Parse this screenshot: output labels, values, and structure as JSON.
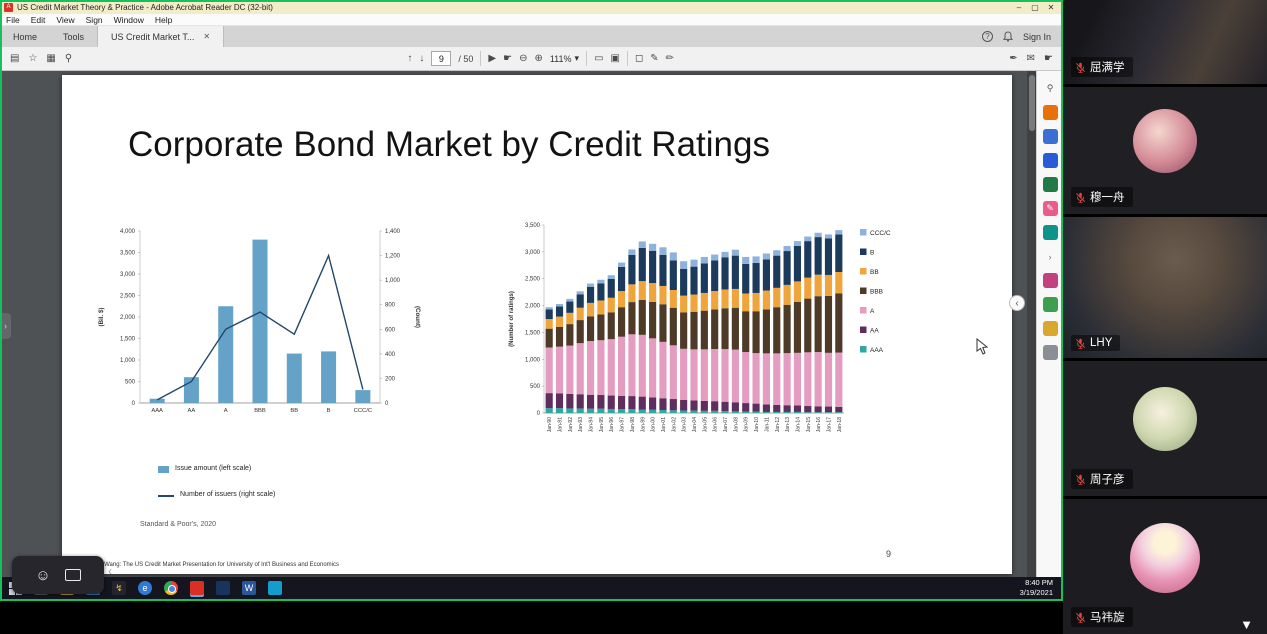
{
  "acrobat": {
    "window_title": "US Credit Market Theory & Practice - Adobe Acrobat Reader DC (32-bit)",
    "window_buttons": {
      "minimize": "–",
      "maximize": "▢",
      "close": "✕"
    },
    "menu": [
      "File",
      "Edit",
      "View",
      "Sign",
      "Window",
      "Help"
    ],
    "tabs": [
      {
        "label": "Home"
      },
      {
        "label": "Tools"
      },
      {
        "label": "US Credit Market T..."
      }
    ],
    "tab_close": "✕",
    "help_icon": "?",
    "sign_in_label": "Sign In",
    "toolbar": {
      "page_current": "9",
      "page_total": "/ 50",
      "zoom": "111%"
    }
  },
  "slide": {
    "title": "Corporate Bond Market by Credit Ratings",
    "source": "Standard & Poor's, 2020",
    "footer": "© Wang: The US Credit Market Presentation for University of Int'l Business and Economics",
    "page_number": "9"
  },
  "chart_data": [
    {
      "type": "bar",
      "subtype": "combo-bar-line",
      "categories": [
        "AAA",
        "AA",
        "A",
        "BBB",
        "BB",
        "B",
        "CCC/C"
      ],
      "series": [
        {
          "name": "Issue amount (left scale)",
          "type": "bar",
          "axis": "left",
          "color": "#64a2c7",
          "values": [
            100,
            600,
            2250,
            3800,
            1150,
            1200,
            300
          ]
        },
        {
          "name": "Number of issuers (right scale)",
          "type": "line",
          "axis": "right",
          "color": "#24476b",
          "values": [
            25,
            175,
            600,
            740,
            560,
            1200,
            110
          ]
        }
      ],
      "ylabel_left": "(Bil. $)",
      "ylabel_right": "(Count)",
      "ylim_left": [
        0,
        4000
      ],
      "ytick_left": 500,
      "ylim_right": [
        0,
        1400
      ],
      "ytick_right": 200,
      "legend_position": "bottom"
    },
    {
      "type": "bar",
      "subtype": "stacked",
      "ylabel": "(Number of ratings)",
      "ylim": [
        0,
        3500
      ],
      "ytick": 500,
      "legend_position": "right",
      "legend_order_top_to_bottom": [
        "CCC/C",
        "B",
        "BB",
        "BBB",
        "A",
        "AA",
        "AAA"
      ],
      "categories": [
        "Jan-90",
        "Jan-91",
        "Jan-92",
        "Jan-93",
        "Jan-94",
        "Jan-95",
        "Jan-96",
        "Jan-97",
        "Jan-98",
        "Jan-99",
        "Jan-00",
        "Jan-01",
        "Jan-02",
        "Jan-03",
        "Jan-04",
        "Jan-05",
        "Jan-06",
        "Jan-07",
        "Jan-08",
        "Jan-09",
        "Jan-10",
        "Jan-11",
        "Jan-12",
        "Jan-13",
        "Jan-14",
        "Jan-15",
        "Jan-16",
        "Jan-17",
        "Jan-18"
      ],
      "series": [
        {
          "name": "AAA",
          "color": "#2ea8a4",
          "values": [
            90,
            90,
            85,
            85,
            80,
            80,
            75,
            70,
            70,
            65,
            60,
            55,
            50,
            45,
            45,
            40,
            40,
            35,
            30,
            25,
            25,
            20,
            20,
            20,
            20,
            15,
            15,
            15,
            15
          ]
        },
        {
          "name": "AA",
          "color": "#5f2e5f",
          "values": [
            280,
            275,
            270,
            265,
            260,
            255,
            250,
            250,
            245,
            240,
            230,
            220,
            210,
            200,
            190,
            185,
            180,
            175,
            170,
            160,
            150,
            140,
            130,
            125,
            120,
            115,
            110,
            105,
            100
          ]
        },
        {
          "name": "A",
          "color": "#e49cc0",
          "values": [
            850,
            870,
            900,
            950,
            1000,
            1020,
            1050,
            1100,
            1150,
            1150,
            1100,
            1050,
            1000,
            950,
            950,
            960,
            970,
            980,
            980,
            950,
            940,
            950,
            960,
            970,
            980,
            1000,
            1010,
            1000,
            1010
          ]
        },
        {
          "name": "BBB",
          "color": "#4e3b27",
          "values": [
            350,
            370,
            400,
            430,
            460,
            480,
            500,
            550,
            600,
            650,
            680,
            700,
            700,
            680,
            700,
            720,
            740,
            760,
            780,
            760,
            780,
            820,
            860,
            900,
            950,
            1000,
            1040,
            1060,
            1100
          ]
        },
        {
          "name": "BB",
          "color": "#f0a43c",
          "values": [
            180,
            190,
            210,
            230,
            250,
            260,
            270,
            300,
            330,
            350,
            350,
            340,
            330,
            310,
            320,
            330,
            340,
            350,
            350,
            330,
            340,
            350,
            360,
            370,
            380,
            390,
            400,
            390,
            400
          ]
        },
        {
          "name": "B",
          "color": "#1b3a5c",
          "values": [
            180,
            190,
            210,
            250,
            300,
            320,
            350,
            450,
            550,
            620,
            600,
            580,
            550,
            500,
            520,
            550,
            570,
            600,
            620,
            550,
            560,
            580,
            600,
            630,
            660,
            680,
            700,
            680,
            700
          ]
        },
        {
          "name": "CCC/C",
          "color": "#8fb2dc",
          "values": [
            40,
            45,
            50,
            55,
            60,
            65,
            70,
            80,
            100,
            120,
            130,
            140,
            150,
            140,
            130,
            120,
            110,
            100,
            110,
            130,
            120,
            110,
            100,
            95,
            90,
            85,
            80,
            75,
            80
          ]
        }
      ]
    }
  ],
  "taskbar": {
    "time": "8:40 PM",
    "date": "3/19/2021"
  },
  "meeting": {
    "participants": [
      {
        "name": "屈满学",
        "muted": true
      },
      {
        "name": "穆一舟",
        "muted": true
      },
      {
        "name": "LHY",
        "muted": true
      },
      {
        "name": "周子彦",
        "muted": true
      },
      {
        "name": "马祎旋",
        "muted": true
      }
    ]
  }
}
